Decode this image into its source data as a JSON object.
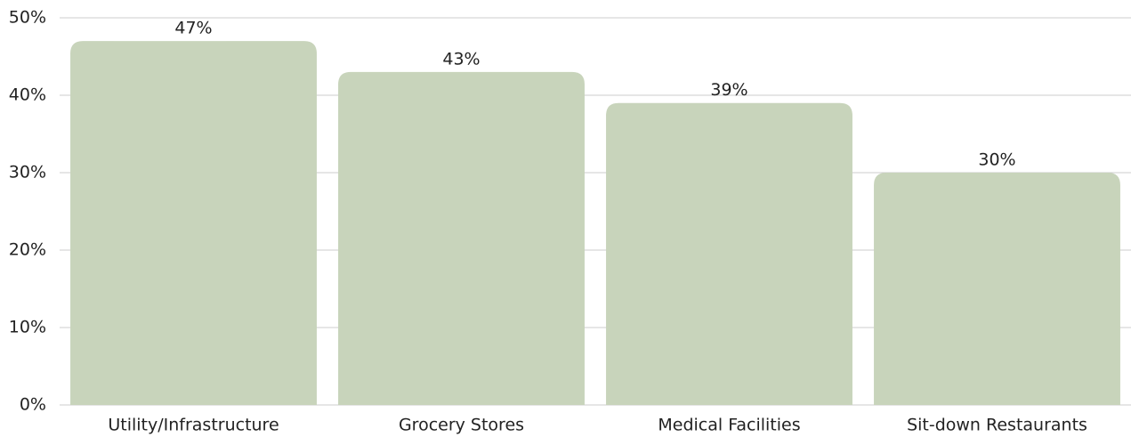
{
  "chart_data": {
    "type": "bar",
    "categories": [
      "Utility/Infrastructure",
      "Grocery Stores",
      "Medical Facilities",
      "Sit-down Restaurants"
    ],
    "values": [
      47,
      43,
      39,
      30
    ],
    "value_labels": [
      "47%",
      "43%",
      "39%",
      "30%"
    ],
    "color": "#c8d4bb",
    "ylim": [
      0,
      50
    ],
    "yticks": [
      {
        "value": 0,
        "label": "0%"
      },
      {
        "value": 10,
        "label": "10%"
      },
      {
        "value": 20,
        "label": "20%"
      },
      {
        "value": 30,
        "label": "30%"
      },
      {
        "value": 40,
        "label": "40%"
      },
      {
        "value": 50,
        "label": "50%"
      }
    ],
    "grid": true
  }
}
